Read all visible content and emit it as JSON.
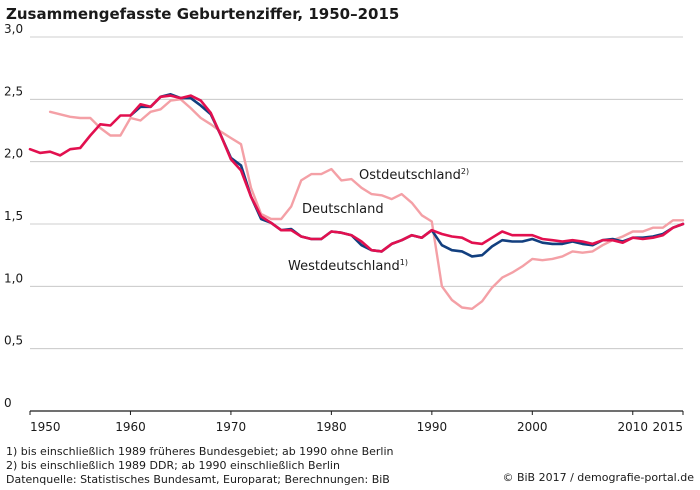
{
  "chart_data": {
    "type": "line",
    "title": "Zusammengefasste Geburtenziffer, 1950–2015",
    "xlabel": "",
    "ylabel": "",
    "xlim": [
      1950,
      2015
    ],
    "ylim": [
      0,
      3.0
    ],
    "x_ticks": [
      1950,
      1960,
      1970,
      1980,
      1990,
      2000,
      2010,
      2015
    ],
    "y_ticks": [
      0,
      0.5,
      1.0,
      1.5,
      2.0,
      2.5,
      3.0
    ],
    "y_tick_labels": [
      "0",
      "0,5",
      "1,0",
      "1,5",
      "2,0",
      "2,5",
      "3,0"
    ],
    "grid": true,
    "series": [
      {
        "name": "Ostdeutschland",
        "footnote": "2)",
        "color": "#f4a0a6",
        "x": [
          1952,
          1953,
          1954,
          1955,
          1956,
          1957,
          1958,
          1959,
          1960,
          1961,
          1962,
          1963,
          1964,
          1965,
          1966,
          1967,
          1968,
          1969,
          1970,
          1971,
          1972,
          1973,
          1974,
          1975,
          1976,
          1977,
          1978,
          1979,
          1980,
          1981,
          1982,
          1983,
          1984,
          1985,
          1986,
          1987,
          1988,
          1989,
          1990,
          1991,
          1992,
          1993,
          1994,
          1995,
          1996,
          1997,
          1998,
          1999,
          2000,
          2001,
          2002,
          2003,
          2004,
          2005,
          2006,
          2007,
          2008,
          2009,
          2010,
          2011,
          2012,
          2013,
          2014,
          2015
        ],
        "values": [
          2.4,
          2.38,
          2.36,
          2.35,
          2.35,
          2.27,
          2.21,
          2.21,
          2.35,
          2.33,
          2.4,
          2.42,
          2.49,
          2.5,
          2.43,
          2.35,
          2.3,
          2.24,
          2.19,
          2.14,
          1.79,
          1.58,
          1.54,
          1.54,
          1.64,
          1.85,
          1.9,
          1.9,
          1.94,
          1.85,
          1.86,
          1.79,
          1.74,
          1.73,
          1.7,
          1.74,
          1.67,
          1.57,
          1.52,
          1.0,
          0.89,
          0.83,
          0.82,
          0.88,
          0.99,
          1.07,
          1.11,
          1.16,
          1.22,
          1.21,
          1.22,
          1.24,
          1.28,
          1.27,
          1.28,
          1.33,
          1.37,
          1.4,
          1.44,
          1.44,
          1.47,
          1.47,
          1.53,
          1.53
        ]
      },
      {
        "name": "Deutschland",
        "footnote": "",
        "color": "#123f7f",
        "x": [
          1960,
          1961,
          1962,
          1963,
          1964,
          1965,
          1966,
          1967,
          1968,
          1969,
          1970,
          1971,
          1972,
          1973,
          1974,
          1975,
          1976,
          1977,
          1978,
          1979,
          1980,
          1981,
          1982,
          1983,
          1984,
          1985,
          1986,
          1987,
          1988,
          1989,
          1990,
          1991,
          1992,
          1993,
          1994,
          1995,
          1996,
          1997,
          1998,
          1999,
          2000,
          2001,
          2002,
          2003,
          2004,
          2005,
          2006,
          2007,
          2008,
          2009,
          2010,
          2011,
          2012,
          2013,
          2014,
          2015
        ],
        "values": [
          2.37,
          2.44,
          2.44,
          2.52,
          2.54,
          2.51,
          2.51,
          2.45,
          2.38,
          2.21,
          2.03,
          1.97,
          1.72,
          1.54,
          1.51,
          1.45,
          1.46,
          1.4,
          1.38,
          1.38,
          1.44,
          1.43,
          1.41,
          1.33,
          1.29,
          1.28,
          1.34,
          1.37,
          1.41,
          1.39,
          1.45,
          1.33,
          1.29,
          1.28,
          1.24,
          1.25,
          1.32,
          1.37,
          1.36,
          1.36,
          1.38,
          1.35,
          1.34,
          1.34,
          1.36,
          1.34,
          1.33,
          1.37,
          1.38,
          1.36,
          1.39,
          1.39,
          1.4,
          1.42,
          1.47,
          1.5
        ]
      },
      {
        "name": "Westdeutschland",
        "footnote": "1)",
        "color": "#e2104f",
        "x": [
          1950,
          1951,
          1952,
          1953,
          1954,
          1955,
          1956,
          1957,
          1958,
          1959,
          1960,
          1961,
          1962,
          1963,
          1964,
          1965,
          1966,
          1967,
          1968,
          1969,
          1970,
          1971,
          1972,
          1973,
          1974,
          1975,
          1976,
          1977,
          1978,
          1979,
          1980,
          1981,
          1982,
          1983,
          1984,
          1985,
          1986,
          1987,
          1988,
          1989,
          1990,
          1991,
          1992,
          1993,
          1994,
          1995,
          1996,
          1997,
          1998,
          1999,
          2000,
          2001,
          2002,
          2003,
          2004,
          2005,
          2006,
          2007,
          2008,
          2009,
          2010,
          2011,
          2012,
          2013,
          2014,
          2015
        ],
        "values": [
          2.1,
          2.07,
          2.08,
          2.05,
          2.1,
          2.11,
          2.21,
          2.3,
          2.29,
          2.37,
          2.37,
          2.46,
          2.44,
          2.52,
          2.53,
          2.51,
          2.53,
          2.49,
          2.39,
          2.21,
          2.02,
          1.93,
          1.72,
          1.56,
          1.51,
          1.45,
          1.45,
          1.4,
          1.38,
          1.38,
          1.44,
          1.43,
          1.41,
          1.36,
          1.29,
          1.28,
          1.34,
          1.37,
          1.41,
          1.39,
          1.45,
          1.42,
          1.4,
          1.39,
          1.35,
          1.34,
          1.39,
          1.44,
          1.41,
          1.41,
          1.41,
          1.38,
          1.37,
          1.36,
          1.37,
          1.36,
          1.34,
          1.37,
          1.37,
          1.35,
          1.39,
          1.38,
          1.39,
          1.41,
          1.47,
          1.5
        ]
      }
    ]
  },
  "labels": {
    "ost": "Ostdeutschland",
    "ost_sup": "2)",
    "deutschland": "Deutschland",
    "west": "Westdeutschland",
    "west_sup": "1)"
  },
  "footnotes": {
    "note1": "1) bis einschließlich 1989 früheres Bundesgebiet; ab 1990 ohne Berlin",
    "note2": "2) bis einschließlich 1989 DDR; ab 1990 einschließlich Berlin",
    "source": "Datenquelle: Statistisches Bundesamt, Europarat; Berechnungen: BiB"
  },
  "credit": "© BiB 2017 / demografie-portal.de"
}
